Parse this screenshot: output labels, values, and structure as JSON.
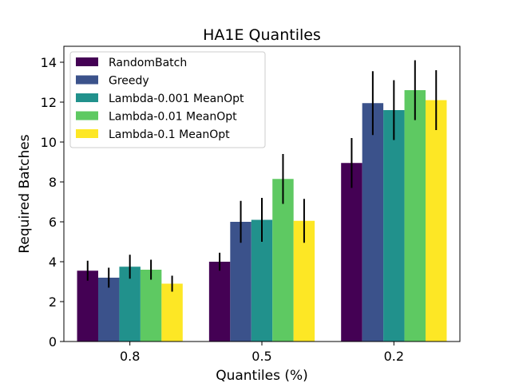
{
  "chart_data": {
    "type": "bar",
    "title": "HA1E Quantiles",
    "xlabel": "Quantiles (%)",
    "ylabel": "Required Batches",
    "categories": [
      "0.8",
      "0.5",
      "0.2"
    ],
    "ylim": [
      0,
      14.8
    ],
    "yticks": [
      0,
      2,
      4,
      6,
      8,
      10,
      12,
      14
    ],
    "legend_position": "top-left",
    "grid": false,
    "series": [
      {
        "name": "RandomBatch",
        "color": "#440154",
        "values": [
          3.55,
          4.0,
          8.95
        ],
        "errors": [
          0.5,
          0.45,
          1.25
        ]
      },
      {
        "name": "Greedy",
        "color": "#3b528b",
        "values": [
          3.2,
          6.0,
          11.95
        ],
        "errors": [
          0.5,
          1.05,
          1.6
        ]
      },
      {
        "name": "Lambda-0.001 MeanOpt",
        "color": "#21918c",
        "values": [
          3.75,
          6.1,
          11.6
        ],
        "errors": [
          0.6,
          1.1,
          1.5
        ]
      },
      {
        "name": "Lambda-0.01 MeanOpt",
        "color": "#5ec962",
        "values": [
          3.6,
          8.15,
          12.6
        ],
        "errors": [
          0.5,
          1.25,
          1.5
        ]
      },
      {
        "name": "Lambda-0.1 MeanOpt",
        "color": "#fde725",
        "values": [
          2.9,
          6.05,
          12.1
        ],
        "errors": [
          0.4,
          1.1,
          1.5
        ]
      }
    ]
  }
}
